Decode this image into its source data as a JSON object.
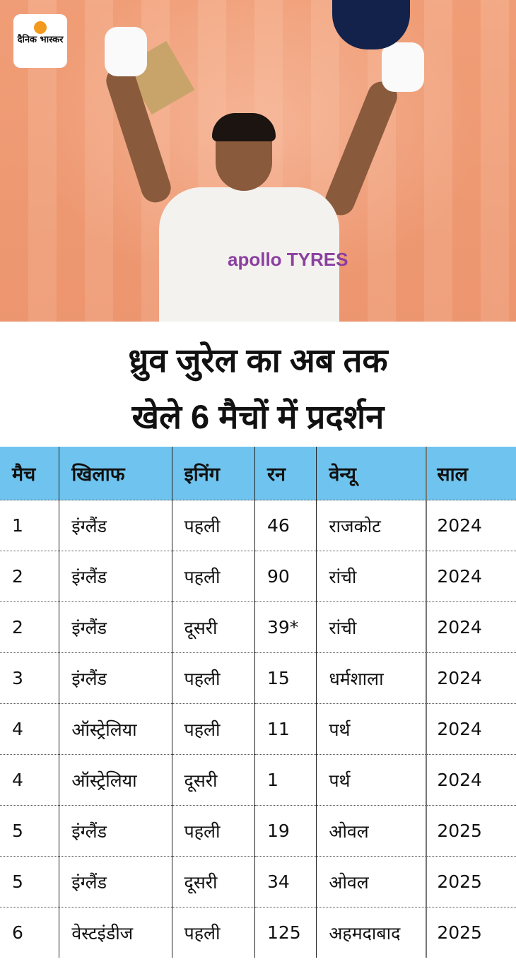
{
  "brand": {
    "logo_text": "दैनिक भास्कर",
    "logo_color": "#f39a1e"
  },
  "photo": {
    "sponsor_text": "apollo TYRES"
  },
  "title": {
    "line1": "ध्रुव जुरेल का अब तक",
    "line2": "खेले 6 मैचों में प्रदर्शन"
  },
  "table": {
    "header_color": "#6ec4ee",
    "headers": [
      "मैच",
      "खिलाफ",
      "इनिंग",
      "रन",
      "वेन्यू",
      "साल"
    ],
    "rows": [
      [
        "1",
        "इंग्लैंड",
        "पहली",
        "46",
        "राजकोट",
        "2024"
      ],
      [
        "2",
        "इंग्लैंड",
        "पहली",
        "90",
        "रांची",
        "2024"
      ],
      [
        "2",
        "इंग्लैंड",
        "दूसरी",
        "39*",
        "रांची",
        "2024"
      ],
      [
        "3",
        "इंग्लैंड",
        "पहली",
        "15",
        "धर्मशाला",
        "2024"
      ],
      [
        "4",
        "ऑस्ट्रेलिया",
        "पहली",
        "11",
        "पर्थ",
        "2024"
      ],
      [
        "4",
        "ऑस्ट्रेलिया",
        "दूसरी",
        "1",
        "पर्थ",
        "2024"
      ],
      [
        "5",
        "इंग्लैंड",
        "पहली",
        "19",
        "ओवल",
        "2025"
      ],
      [
        "5",
        "इंग्लैंड",
        "दूसरी",
        "34",
        "ओवल",
        "2025"
      ],
      [
        "6",
        "वेस्टइंडीज",
        "पहली",
        "125",
        "अहमदाबाद",
        "2025"
      ]
    ]
  }
}
